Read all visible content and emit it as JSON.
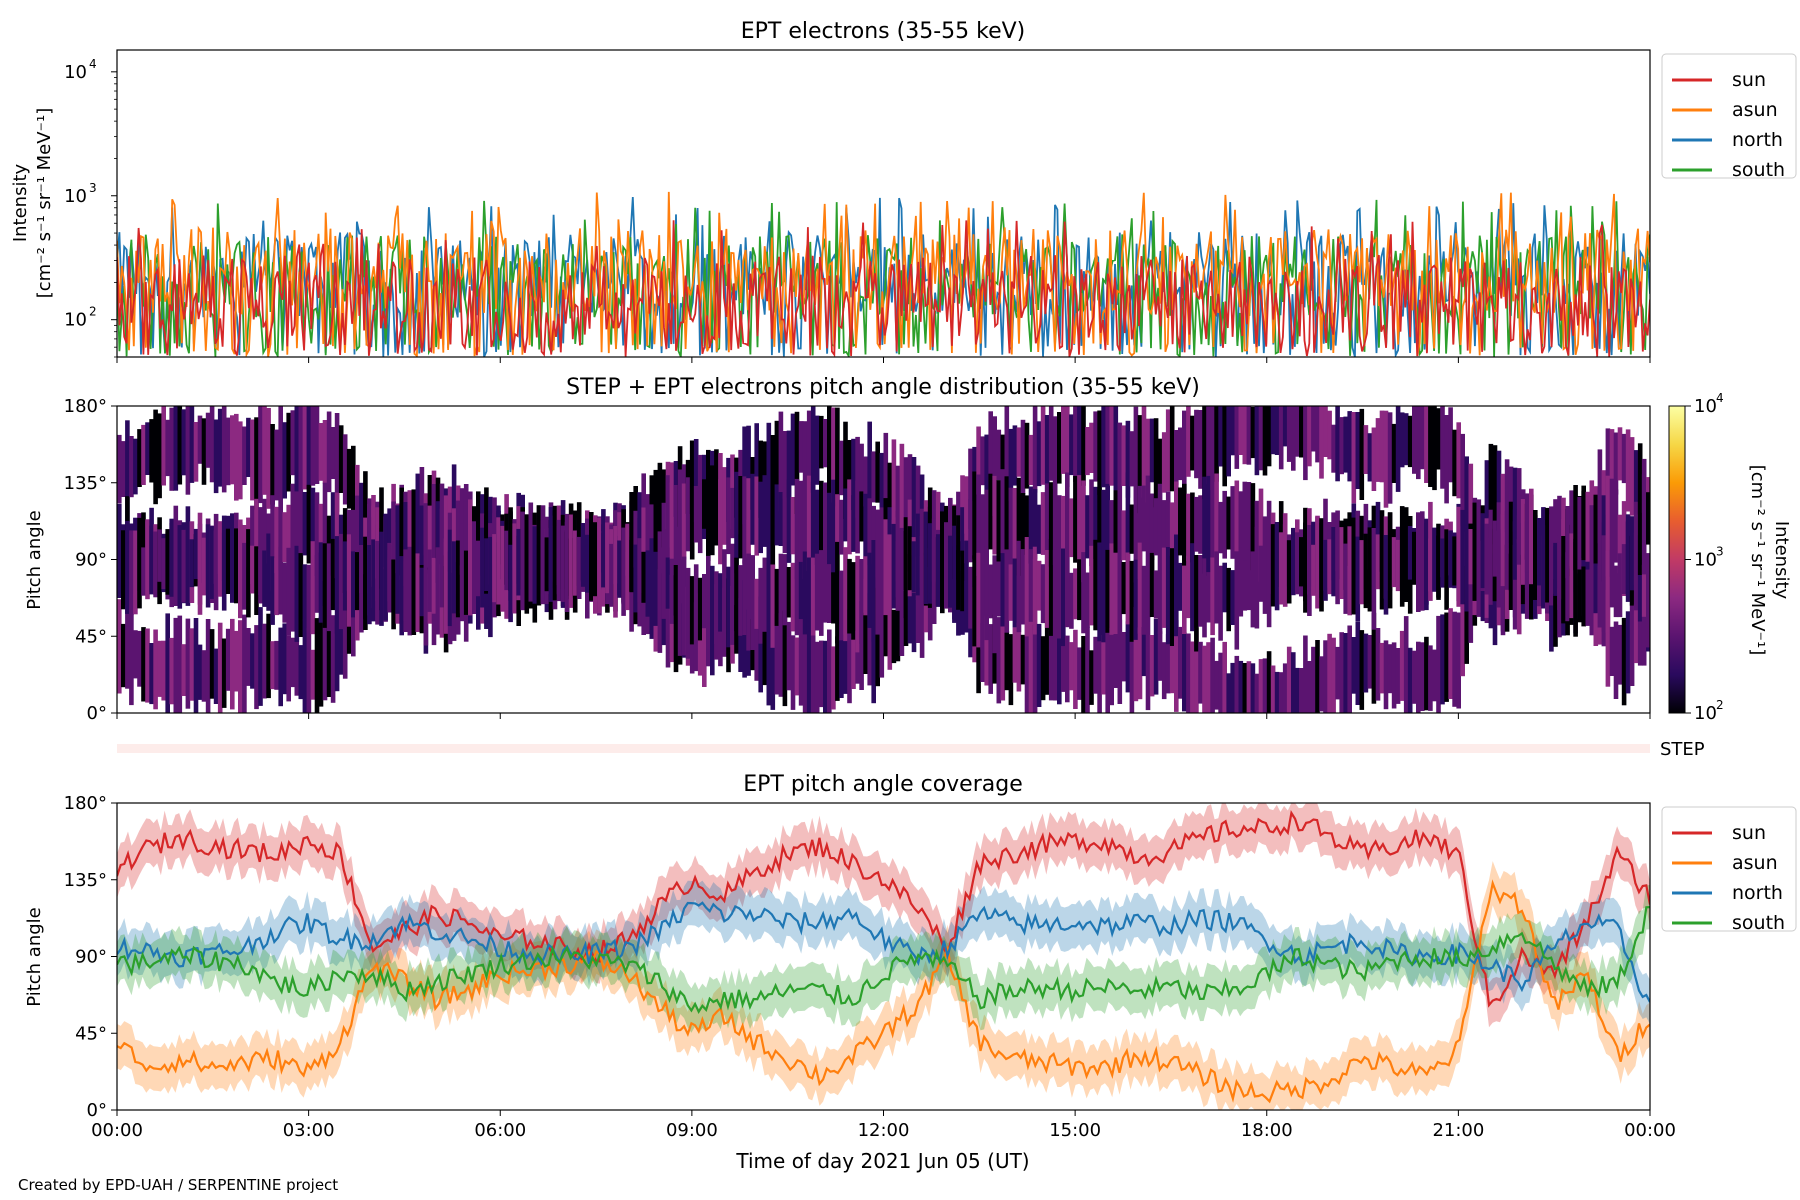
{
  "colors": {
    "sun": "#d62728",
    "asun": "#ff7f0e",
    "north": "#1f77b4",
    "south": "#2ca02c",
    "cmap": [
      "#000004",
      "#2a0a5e",
      "#5b1470",
      "#8c2981",
      "#c13a65",
      "#e85d2f",
      "#fb9b06",
      "#f6d746",
      "#fcffa4"
    ],
    "step_band": "#fdecea"
  },
  "footer": "Created by EPD-UAH / SERPENTINE project",
  "chart_data": [
    {
      "type": "line",
      "title": "EPT electrons (35-55 keV)",
      "ylabel": [
        "Intensity",
        "[cm⁻² s⁻¹ sr⁻¹ MeV⁻¹]"
      ],
      "yscale": "log",
      "ylim": [
        50,
        15000
      ],
      "yticks": [
        100,
        1000,
        10000
      ],
      "ytick_labels": [
        "10",
        "10",
        "10"
      ],
      "ytick_exponents": [
        "2",
        "3",
        "4"
      ],
      "xlim": [
        0,
        24
      ],
      "legend_position": "outside-top-right",
      "series": [
        {
          "name": "sun",
          "key": "sun",
          "baseline": 150
        },
        {
          "name": "asun",
          "key": "asun",
          "baseline": 250
        },
        {
          "name": "north",
          "key": "north",
          "baseline": 230
        },
        {
          "name": "south",
          "key": "south",
          "baseline": 220
        }
      ]
    },
    {
      "type": "heatmap",
      "title": "STEP + EPT electrons pitch angle distribution (35-55 keV)",
      "ylabel": "Pitch angle",
      "ylim": [
        0,
        180
      ],
      "yticks": [
        0,
        45,
        90,
        135,
        180
      ],
      "ytick_labels": [
        "0°",
        "45°",
        "90°",
        "135°",
        "180°"
      ],
      "colorbar": {
        "label": [
          "Intensity",
          "[cm⁻² s⁻¹ sr⁻¹ MeV⁻¹]"
        ],
        "scale": "log",
        "range": [
          100,
          10000
        ],
        "tick_labels": [
          "10",
          "10",
          "10"
        ],
        "tick_exponents": [
          "2",
          "3",
          "4"
        ]
      },
      "step_label": "STEP"
    },
    {
      "type": "line",
      "title": "EPT pitch angle coverage",
      "ylabel": "Pitch angle",
      "xlabel": "Time of day 2021 Jun 05 (UT)",
      "ylim": [
        0,
        180
      ],
      "yticks": [
        0,
        45,
        90,
        135,
        180
      ],
      "ytick_labels": [
        "0°",
        "45°",
        "90°",
        "135°",
        "180°"
      ],
      "xlim": [
        0,
        24
      ],
      "xticks": [
        0,
        3,
        6,
        9,
        12,
        15,
        18,
        21,
        24
      ],
      "xtick_labels": [
        "00:00",
        "03:00",
        "06:00",
        "09:00",
        "12:00",
        "15:00",
        "18:00",
        "21:00",
        "00:00"
      ],
      "legend_position": "outside-top-right",
      "series": [
        {
          "name": "sun",
          "key": "sun",
          "x": [
            0,
            0.3,
            0.6,
            1,
            1.5,
            2,
            2.5,
            3,
            3.5,
            4,
            4.5,
            5,
            5.5,
            6,
            6.5,
            7,
            7.5,
            8,
            8.5,
            9,
            9.5,
            10,
            10.5,
            11,
            11.5,
            12,
            12.5,
            13,
            13.5,
            14,
            14.5,
            15,
            15.5,
            16,
            16.5,
            17,
            17.5,
            18,
            18.5,
            19,
            19.5,
            20,
            20.5,
            21,
            21.5,
            22,
            22.5,
            23,
            23.5,
            24
          ],
          "y": [
            140,
            150,
            155,
            160,
            155,
            152,
            150,
            158,
            150,
            95,
            105,
            115,
            110,
            100,
            100,
            95,
            92,
            100,
            120,
            135,
            125,
            140,
            150,
            155,
            145,
            135,
            120,
            95,
            145,
            150,
            155,
            158,
            157,
            148,
            152,
            160,
            165,
            165,
            170,
            160,
            150,
            155,
            160,
            150,
            60,
            90,
            80,
            110,
            150,
            125
          ]
        },
        {
          "name": "asun",
          "key": "asun",
          "x": [
            0,
            0.3,
            0.6,
            1,
            1.5,
            2,
            2.5,
            3,
            3.5,
            4,
            4.5,
            5,
            5.5,
            6,
            6.5,
            7,
            7.5,
            8,
            8.5,
            9,
            9.5,
            10,
            10.5,
            11,
            11.5,
            12,
            12.5,
            13,
            13.5,
            14,
            14.5,
            15,
            15.5,
            16,
            16.5,
            17,
            17.5,
            18,
            18.5,
            19,
            19.5,
            20,
            20.5,
            21,
            21.5,
            22,
            22.5,
            23,
            23.5,
            24
          ],
          "y": [
            40,
            30,
            25,
            30,
            25,
            28,
            30,
            22,
            40,
            85,
            75,
            65,
            70,
            80,
            82,
            85,
            88,
            80,
            60,
            45,
            55,
            40,
            30,
            20,
            30,
            45,
            60,
            90,
            40,
            30,
            28,
            25,
            25,
            32,
            28,
            20,
            12,
            10,
            12,
            18,
            30,
            25,
            20,
            35,
            130,
            120,
            60,
            80,
            30,
            55
          ]
        },
        {
          "name": "north",
          "key": "north",
          "x": [
            0,
            0.3,
            0.6,
            1,
            1.5,
            2,
            2.5,
            3,
            3.5,
            4,
            4.5,
            5,
            5.5,
            6,
            6.5,
            7,
            7.5,
            8,
            8.5,
            9,
            9.5,
            10,
            10.5,
            11,
            11.5,
            12,
            12.5,
            13,
            13.5,
            14,
            14.5,
            15,
            15.5,
            16,
            16.5,
            17,
            17.5,
            18,
            18.5,
            19,
            19.5,
            20,
            20.5,
            21,
            21.5,
            22,
            22.5,
            23,
            23.5,
            24
          ],
          "y": [
            95,
            95,
            92,
            90,
            92,
            95,
            105,
            110,
            100,
            100,
            110,
            105,
            100,
            95,
            92,
            90,
            92,
            95,
            105,
            120,
            115,
            115,
            110,
            110,
            115,
            100,
            90,
            95,
            115,
            110,
            108,
            110,
            108,
            110,
            108,
            112,
            110,
            100,
            90,
            95,
            100,
            92,
            90,
            92,
            85,
            75,
            95,
            110,
            105,
            60
          ]
        },
        {
          "name": "south",
          "key": "south",
          "x": [
            0,
            0.3,
            0.6,
            1,
            1.5,
            2,
            2.5,
            3,
            3.5,
            4,
            4.5,
            5,
            5.5,
            6,
            6.5,
            7,
            7.5,
            8,
            8.5,
            9,
            9.5,
            10,
            10.5,
            11,
            11.5,
            12,
            12.5,
            13,
            13.5,
            14,
            14.5,
            15,
            15.5,
            16,
            16.5,
            17,
            17.5,
            18,
            18.5,
            19,
            19.5,
            20,
            20.5,
            21,
            21.5,
            22,
            22.5,
            23,
            23.5,
            24
          ],
          "y": [
            88,
            85,
            88,
            90,
            88,
            85,
            75,
            70,
            80,
            80,
            70,
            75,
            80,
            85,
            88,
            90,
            88,
            85,
            75,
            60,
            65,
            65,
            70,
            70,
            65,
            80,
            90,
            85,
            65,
            70,
            72,
            70,
            72,
            70,
            72,
            68,
            70,
            80,
            90,
            85,
            80,
            88,
            90,
            88,
            95,
            105,
            85,
            70,
            75,
            120
          ]
        }
      ]
    }
  ]
}
